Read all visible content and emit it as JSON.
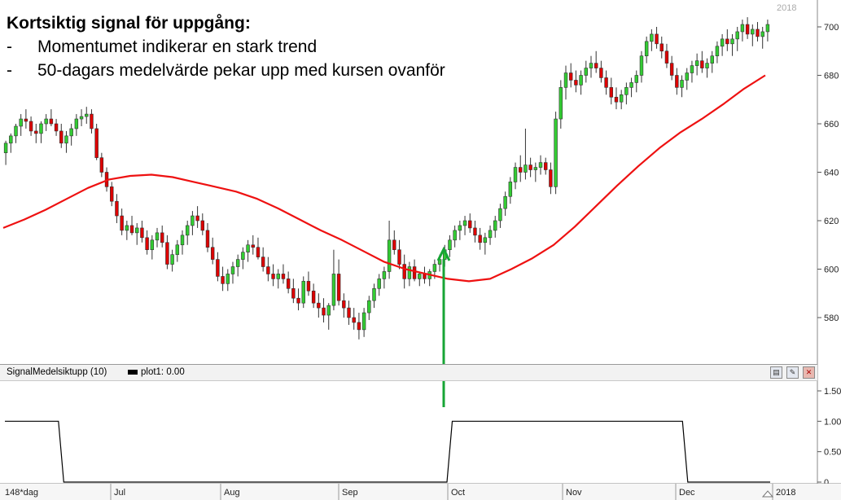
{
  "annotation": {
    "title": "Kortsiktig signal för uppgång:",
    "bullets": [
      {
        "dash": "-",
        "text": "Momentumet indikerar en stark trend"
      },
      {
        "dash": "-",
        "text": "50-dagars medelvärde pekar upp med kursen ovanför"
      }
    ]
  },
  "indicator_panel": {
    "name": "SignalMedelsiktupp (10)",
    "legend": "plot1: 0.00",
    "buttons": [
      "document-icon",
      "wrench-icon",
      "close-icon"
    ]
  },
  "year_corner_label": "2018",
  "colors": {
    "up": "#33cc33",
    "down": "#dd0000",
    "ma": "#ee1111",
    "signal_arrow": "#17a535",
    "signal_line": "#000000"
  },
  "chart_data": [
    {
      "type": "candlestick",
      "price_ylim": [
        570,
        702
      ],
      "price_ticks": [
        580,
        600,
        620,
        640,
        660,
        680,
        700
      ],
      "x_axis_labels": [
        "148*dag",
        "Jul",
        "Aug",
        "Sep",
        "Oct",
        "Nov",
        "Dec",
        "2018"
      ],
      "candles_ohlc": [
        [
          648,
          653,
          643,
          652
        ],
        [
          652,
          656,
          648,
          655
        ],
        [
          655,
          660,
          652,
          659
        ],
        [
          659,
          664,
          655,
          662
        ],
        [
          662,
          666,
          658,
          661
        ],
        [
          661,
          663,
          655,
          657
        ],
        [
          657,
          660,
          652,
          656
        ],
        [
          656,
          661,
          652,
          660
        ],
        [
          660,
          664,
          657,
          662
        ],
        [
          662,
          666,
          659,
          660
        ],
        [
          660,
          662,
          655,
          657
        ],
        [
          657,
          660,
          650,
          652
        ],
        [
          652,
          657,
          648,
          655
        ],
        [
          655,
          660,
          651,
          658
        ],
        [
          658,
          664,
          655,
          662
        ],
        [
          662,
          666,
          659,
          663
        ],
        [
          663,
          667,
          660,
          664
        ],
        [
          664,
          666,
          656,
          658
        ],
        [
          658,
          660,
          645,
          646
        ],
        [
          646,
          648,
          638,
          640
        ],
        [
          640,
          642,
          632,
          634
        ],
        [
          634,
          636,
          626,
          628
        ],
        [
          628,
          631,
          619,
          622
        ],
        [
          622,
          625,
          614,
          616
        ],
        [
          616,
          620,
          612,
          618
        ],
        [
          618,
          622,
          614,
          615
        ],
        [
          615,
          619,
          610,
          617
        ],
        [
          617,
          620,
          611,
          613
        ],
        [
          613,
          616,
          606,
          608
        ],
        [
          608,
          614,
          604,
          612
        ],
        [
          612,
          617,
          609,
          615
        ],
        [
          615,
          618,
          609,
          611
        ],
        [
          611,
          614,
          600,
          602
        ],
        [
          602,
          608,
          599,
          606
        ],
        [
          606,
          612,
          603,
          610
        ],
        [
          610,
          616,
          606,
          614
        ],
        [
          614,
          620,
          610,
          618
        ],
        [
          618,
          624,
          614,
          622
        ],
        [
          622,
          626,
          617,
          620
        ],
        [
          620,
          623,
          614,
          616
        ],
        [
          616,
          619,
          607,
          609
        ],
        [
          609,
          613,
          602,
          604
        ],
        [
          604,
          607,
          595,
          597
        ],
        [
          597,
          601,
          591,
          594
        ],
        [
          594,
          600,
          591,
          598
        ],
        [
          598,
          603,
          594,
          601
        ],
        [
          601,
          606,
          597,
          604
        ],
        [
          604,
          609,
          600,
          607
        ],
        [
          607,
          612,
          603,
          610
        ],
        [
          610,
          614,
          606,
          609
        ],
        [
          609,
          613,
          604,
          605
        ],
        [
          605,
          609,
          599,
          601
        ],
        [
          601,
          605,
          595,
          598
        ],
        [
          598,
          602,
          593,
          596
        ],
        [
          596,
          600,
          592,
          598
        ],
        [
          598,
          602,
          594,
          596
        ],
        [
          596,
          599,
          590,
          592
        ],
        [
          592,
          596,
          586,
          588
        ],
        [
          588,
          592,
          583,
          586
        ],
        [
          586,
          597,
          584,
          595
        ],
        [
          595,
          599,
          589,
          591
        ],
        [
          591,
          594,
          584,
          586
        ],
        [
          586,
          590,
          580,
          584
        ],
        [
          584,
          588,
          578,
          581
        ],
        [
          581,
          586,
          575,
          585
        ],
        [
          585,
          608,
          583,
          598
        ],
        [
          598,
          604,
          585,
          587
        ],
        [
          587,
          590,
          580,
          584
        ],
        [
          584,
          587,
          577,
          580
        ],
        [
          580,
          584,
          575,
          578
        ],
        [
          578,
          582,
          571,
          575
        ],
        [
          575,
          584,
          572,
          582
        ],
        [
          582,
          589,
          579,
          587
        ],
        [
          587,
          594,
          584,
          592
        ],
        [
          592,
          598,
          589,
          596
        ],
        [
          596,
          601,
          592,
          599
        ],
        [
          599,
          620,
          596,
          612
        ],
        [
          612,
          616,
          606,
          608
        ],
        [
          608,
          612,
          600,
          602
        ],
        [
          602,
          606,
          592,
          596
        ],
        [
          596,
          603,
          593,
          601
        ],
        [
          601,
          604,
          595,
          596
        ],
        [
          596,
          599,
          593,
          598
        ],
        [
          598,
          601,
          594,
          596
        ],
        [
          596,
          600,
          593,
          599
        ],
        [
          599,
          604,
          596,
          602
        ],
        [
          602,
          606,
          599,
          604
        ],
        [
          604,
          610,
          601,
          608
        ],
        [
          608,
          614,
          605,
          612
        ],
        [
          612,
          618,
          609,
          616
        ],
        [
          616,
          620,
          612,
          618
        ],
        [
          618,
          622,
          614,
          620
        ],
        [
          620,
          623,
          615,
          617
        ],
        [
          617,
          620,
          611,
          614
        ],
        [
          614,
          617,
          608,
          611
        ],
        [
          611,
          615,
          606,
          613
        ],
        [
          613,
          618,
          610,
          616
        ],
        [
          616,
          622,
          613,
          620
        ],
        [
          620,
          627,
          617,
          625
        ],
        [
          625,
          632,
          622,
          630
        ],
        [
          630,
          638,
          627,
          636
        ],
        [
          636,
          644,
          633,
          642
        ],
        [
          642,
          647,
          636,
          640
        ],
        [
          640,
          658,
          637,
          643
        ],
        [
          643,
          646,
          638,
          641
        ],
        [
          641,
          644,
          636,
          642
        ],
        [
          642,
          647,
          639,
          644
        ],
        [
          644,
          646,
          639,
          641
        ],
        [
          641,
          644,
          631,
          634
        ],
        [
          634,
          665,
          631,
          662
        ],
        [
          662,
          678,
          658,
          675
        ],
        [
          675,
          684,
          670,
          681
        ],
        [
          681,
          685,
          675,
          678
        ],
        [
          678,
          682,
          673,
          676
        ],
        [
          676,
          682,
          672,
          680
        ],
        [
          680,
          686,
          677,
          683
        ],
        [
          683,
          688,
          679,
          685
        ],
        [
          685,
          690,
          681,
          683
        ],
        [
          683,
          686,
          677,
          679
        ],
        [
          679,
          682,
          672,
          675
        ],
        [
          675,
          679,
          668,
          671
        ],
        [
          671,
          675,
          666,
          669
        ],
        [
          669,
          674,
          666,
          672
        ],
        [
          672,
          677,
          668,
          675
        ],
        [
          675,
          679,
          671,
          677
        ],
        [
          677,
          682,
          673,
          680
        ],
        [
          680,
          690,
          677,
          688
        ],
        [
          688,
          696,
          685,
          694
        ],
        [
          694,
          699,
          690,
          697
        ],
        [
          697,
          700,
          691,
          693
        ],
        [
          693,
          696,
          687,
          690
        ],
        [
          690,
          693,
          683,
          685
        ],
        [
          685,
          688,
          678,
          680
        ],
        [
          680,
          683,
          672,
          675
        ],
        [
          675,
          680,
          671,
          678
        ],
        [
          678,
          683,
          674,
          681
        ],
        [
          681,
          686,
          677,
          684
        ],
        [
          684,
          689,
          680,
          686
        ],
        [
          686,
          690,
          681,
          683
        ],
        [
          683,
          687,
          679,
          685
        ],
        [
          685,
          690,
          681,
          688
        ],
        [
          688,
          694,
          685,
          692
        ],
        [
          692,
          697,
          688,
          695
        ],
        [
          695,
          699,
          690,
          693
        ],
        [
          693,
          697,
          688,
          695
        ],
        [
          695,
          700,
          690,
          698
        ],
        [
          698,
          703,
          694,
          701
        ],
        [
          701,
          704,
          695,
          697
        ],
        [
          697,
          701,
          692,
          699
        ],
        [
          699,
          702,
          694,
          696
        ],
        [
          696,
          700,
          691,
          698
        ],
        [
          698,
          703,
          694,
          701
        ]
      ],
      "series": [
        {
          "name": "",
          "type": "line",
          "values": [
            617.0,
            620.5,
            624.5,
            629.0,
            633.5,
            637.0,
            638.5,
            639.0,
            638.0,
            636.0,
            634.0,
            632.0,
            629.0,
            625.0,
            620.5,
            616.0,
            612.0,
            607.5,
            603.0,
            600.0,
            598.0,
            596.0,
            595.0,
            596.0,
            600.0,
            604.5,
            610.0,
            617.5,
            626.0,
            634.5,
            642.5,
            650.0,
            656.5,
            662.0,
            668.0,
            674.5,
            680.0
          ]
        }
      ]
    },
    {
      "type": "line",
      "ylim": [
        0,
        1.5
      ],
      "y_ticks": [
        "0",
        "0.50",
        "1.00",
        "1.50"
      ],
      "series": [
        {
          "name": "plot1",
          "values": [
            1,
            1,
            1,
            1,
            1,
            0,
            0,
            0,
            0,
            0,
            0,
            0,
            0,
            0,
            0,
            0,
            0,
            0,
            0,
            0,
            0,
            0,
            0,
            0,
            0,
            0,
            0,
            0,
            0,
            0,
            0,
            0,
            0,
            0,
            0,
            0,
            0,
            0,
            1,
            1,
            1,
            1,
            1,
            1,
            1,
            1,
            1,
            1,
            1,
            1,
            1,
            1,
            1,
            1,
            1,
            1,
            1,
            1,
            0,
            0,
            0,
            0,
            0,
            0,
            0,
            0
          ]
        }
      ]
    }
  ]
}
